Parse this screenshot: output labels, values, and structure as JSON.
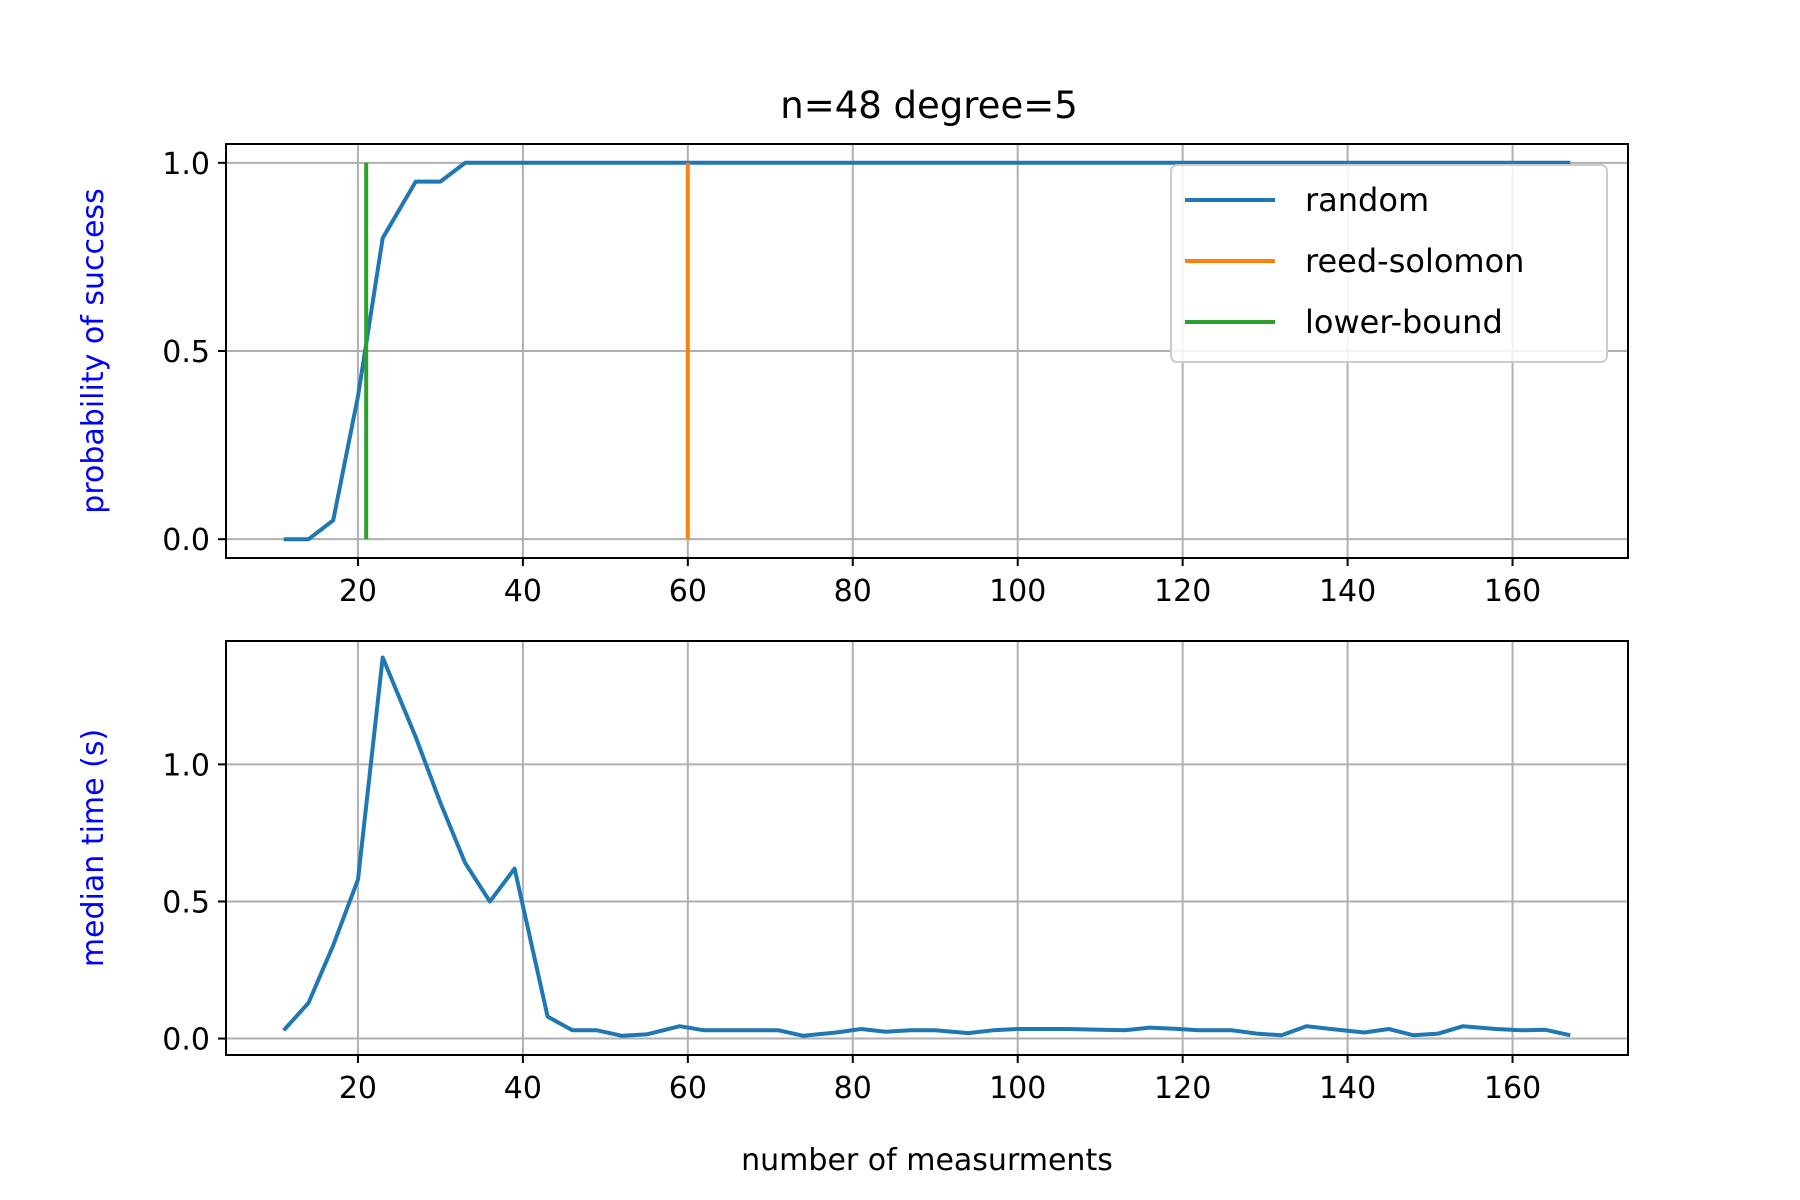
{
  "chart_data": [
    {
      "type": "line",
      "title": "n=48 degree=5",
      "xlabel": "",
      "ylabel": "probability of success",
      "ylabel_color": "#0000ff",
      "xlim": [
        4,
        174
      ],
      "ylim": [
        -0.05,
        1.05
      ],
      "xticks": [
        20,
        40,
        60,
        80,
        100,
        120,
        140,
        160
      ],
      "xtick_labels": [
        "20",
        "40",
        "60",
        "80",
        "100",
        "120",
        "140",
        "160"
      ],
      "yticks": [
        0.0,
        0.5,
        1.0
      ],
      "ytick_labels": [
        "0.0",
        "0.5",
        "1.0"
      ],
      "grid": true,
      "legend_position": "top-right",
      "series": [
        {
          "name": "random",
          "color": "#1f77b4",
          "x": [
            11,
            14,
            17,
            20,
            23,
            27,
            30,
            33,
            36,
            40,
            60,
            80,
            100,
            120,
            140,
            160,
            167
          ],
          "y": [
            0.0,
            0.0,
            0.05,
            0.38,
            0.8,
            0.95,
            0.95,
            1.0,
            1.0,
            1.0,
            1.0,
            1.0,
            1.0,
            1.0,
            1.0,
            1.0,
            1.0
          ]
        },
        {
          "name": "reed-solomon",
          "color": "#ff7f0e",
          "x": [
            60,
            60
          ],
          "y": [
            0.0,
            1.0
          ]
        },
        {
          "name": "lower-bound",
          "color": "#2ca02c",
          "x": [
            21,
            21
          ],
          "y": [
            0.0,
            1.0
          ]
        }
      ]
    },
    {
      "type": "line",
      "title": "",
      "xlabel": "number of measurments",
      "ylabel": "median time (s)",
      "ylabel_color": "#0000ff",
      "xlim": [
        4,
        174
      ],
      "ylim": [
        -0.06,
        1.45
      ],
      "xticks": [
        20,
        40,
        60,
        80,
        100,
        120,
        140,
        160
      ],
      "xtick_labels": [
        "20",
        "40",
        "60",
        "80",
        "100",
        "120",
        "140",
        "160"
      ],
      "yticks": [
        0.0,
        0.5,
        1.0
      ],
      "ytick_labels": [
        "0.0",
        "0.5",
        "1.0"
      ],
      "grid": true,
      "series": [
        {
          "color": "#1f77b4",
          "x": [
            11,
            14,
            17,
            20,
            23,
            27,
            30,
            33,
            36,
            39,
            43,
            46,
            49,
            52,
            55,
            59,
            62,
            65,
            68,
            71,
            74,
            78,
            81,
            84,
            87,
            90,
            94,
            97,
            100,
            103,
            106,
            110,
            113,
            116,
            119,
            122,
            126,
            129,
            132,
            135,
            138,
            142,
            145,
            148,
            151,
            154,
            158,
            161,
            164,
            167
          ],
          "y": [
            0.03,
            0.13,
            0.34,
            0.58,
            1.39,
            1.1,
            0.86,
            0.64,
            0.5,
            0.62,
            0.08,
            0.03,
            0.03,
            0.01,
            0.015,
            0.045,
            0.03,
            0.03,
            0.03,
            0.03,
            0.01,
            0.022,
            0.035,
            0.025,
            0.03,
            0.03,
            0.02,
            0.03,
            0.035,
            0.035,
            0.035,
            0.032,
            0.03,
            0.04,
            0.036,
            0.03,
            0.03,
            0.018,
            0.012,
            0.045,
            0.035,
            0.022,
            0.035,
            0.012,
            0.018,
            0.045,
            0.035,
            0.03,
            0.032,
            0.012
          ]
        }
      ]
    }
  ]
}
